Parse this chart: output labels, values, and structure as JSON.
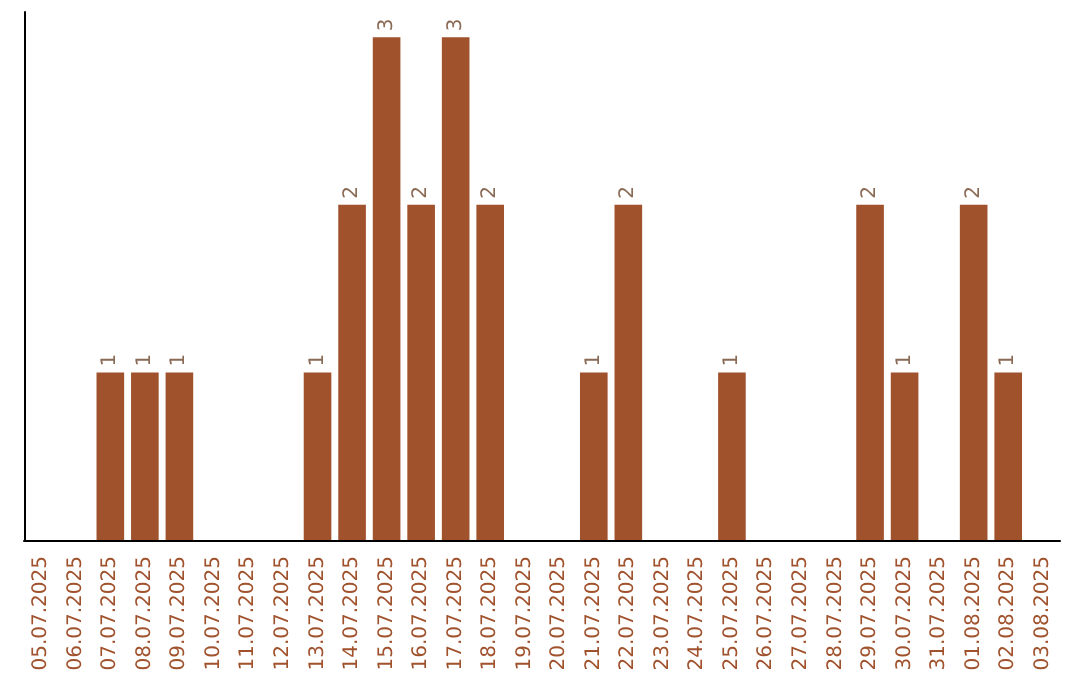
{
  "chart_data": {
    "type": "bar",
    "categories": [
      "05.07.2025",
      "06.07.2025",
      "07.07.2025",
      "08.07.2025",
      "09.07.2025",
      "10.07.2025",
      "11.07.2025",
      "12.07.2025",
      "13.07.2025",
      "14.07.2025",
      "15.07.2025",
      "16.07.2025",
      "17.07.2025",
      "18.07.2025",
      "19.07.2025",
      "20.07.2025",
      "21.07.2025",
      "22.07.2025",
      "23.07.2025",
      "24.07.2025",
      "25.07.2025",
      "26.07.2025",
      "27.07.2025",
      "28.07.2025",
      "29.07.2025",
      "30.07.2025",
      "31.07.2025",
      "01.08.2025",
      "02.08.2025",
      "03.08.2025"
    ],
    "values": [
      0,
      0,
      1,
      1,
      1,
      0,
      0,
      0,
      1,
      2,
      3,
      2,
      3,
      2,
      0,
      0,
      1,
      2,
      0,
      0,
      1,
      0,
      0,
      0,
      2,
      1,
      0,
      2,
      1,
      0
    ],
    "value_labels": [
      null,
      null,
      "1",
      "1",
      "1",
      null,
      null,
      null,
      "1",
      "2",
      "3",
      "2",
      "3",
      "2",
      null,
      null,
      "1",
      "2",
      null,
      null,
      "1",
      null,
      null,
      null,
      "2",
      "1",
      null,
      "2",
      "1",
      null
    ],
    "color": "#a0522d",
    "ylim": [
      0,
      3.15
    ],
    "tick_labels": "x"
  }
}
